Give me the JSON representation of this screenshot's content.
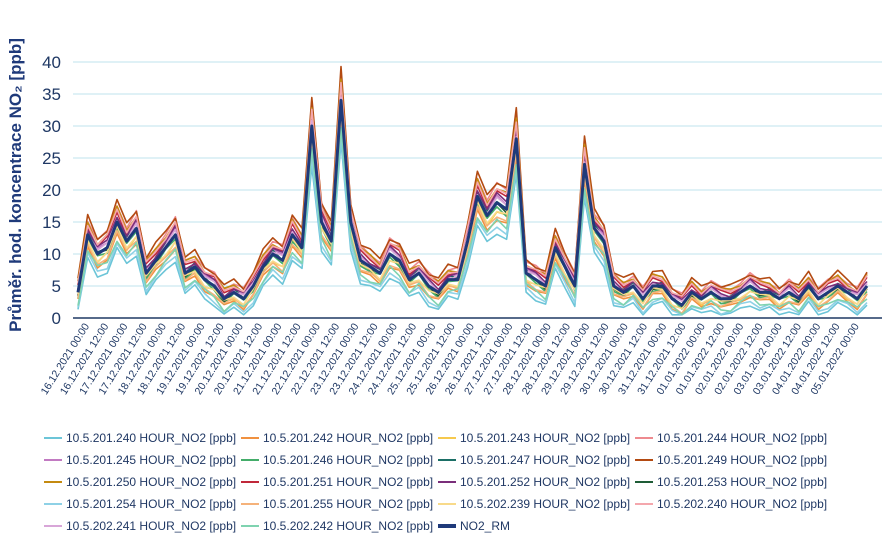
{
  "chart_data": {
    "type": "line",
    "title": "",
    "xlabel": "",
    "ylabel": "Průměr. hod. koncentrace NO₂ [ppb]",
    "ylim": [
      0,
      40
    ],
    "yticks": [
      0,
      5,
      10,
      15,
      20,
      25,
      30,
      35,
      40
    ],
    "grid": true,
    "legend_position": "bottom",
    "categories": [
      "16.12.2021 00:00",
      "16.12.2021 12:00",
      "17.12.2021 00:00",
      "17.12.2021 12:00",
      "18.12.2021 00:00",
      "18.12.2021 12:00",
      "19.12.2021 00:00",
      "19.12.2021 12:00",
      "20.12.2021 00:00",
      "20.12.2021 12:00",
      "21.12.2021 00:00",
      "21.12.2021 12:00",
      "22.12.2021 00:00",
      "22.12.2021 12:00",
      "23.12.2021 00:00",
      "23.12.2021 12:00",
      "24.12.2021 00:00",
      "24.12.2021 12:00",
      "25.12.2021 00:00",
      "25.12.2021 12:00",
      "26.12.2021 00:00",
      "26.12.2021 12:00",
      "27.12.2021 00:00",
      "27.12.2021 12:00",
      "28.12.2021 00:00",
      "28.12.2021 12:00",
      "29.12.2021 00:00",
      "29.12.2021 12:00",
      "30.12.2021 00:00",
      "30.12.2021 12:00",
      "31.12.2021 00:00",
      "31.12.2021 12:00",
      "01.01.2022 00:00",
      "01.01.2022 12:00",
      "02.01.2022 00:00",
      "02.01.2022 12:00",
      "03.01.2022 00:00",
      "03.01.2022 12:00",
      "04.01.2022 00:00",
      "04.01.2022 12:00",
      "05.01.2022 00:00"
    ],
    "reference": {
      "name": "NO2_RM",
      "color": "#1f3a7a",
      "values": [
        4,
        13,
        10,
        11,
        15,
        12,
        14,
        7,
        9,
        11,
        13,
        7,
        8,
        6,
        5,
        3,
        4,
        3,
        5,
        8,
        10,
        9,
        13,
        11,
        30,
        15,
        12,
        34,
        15,
        9,
        8,
        7,
        10,
        9,
        6,
        7,
        5,
        4,
        6,
        6,
        12,
        19,
        16,
        18,
        17,
        28,
        7,
        6,
        5,
        11,
        8,
        5,
        24,
        14,
        12,
        5,
        4,
        5,
        3,
        5,
        5,
        3,
        2,
        4,
        3,
        4,
        3,
        3,
        4,
        5,
        4,
        4,
        3,
        4,
        3,
        5,
        3,
        4,
        5,
        4,
        3,
        5
      ]
    },
    "series": [
      {
        "name": "10.5.201.240 HOUR_NO2 [ppb]",
        "color": "#6cc5d8",
        "offset": -3.5
      },
      {
        "name": "10.5.201.242 HOUR_NO2 [ppb]",
        "color": "#f0913f",
        "offset": -1.8
      },
      {
        "name": "10.5.201.243 HOUR_NO2 [ppb]",
        "color": "#f6c94e",
        "offset": -1.0
      },
      {
        "name": "10.5.201.244 HOUR_NO2 [ppb]",
        "color": "#ee8a8f",
        "offset": 2.2
      },
      {
        "name": "10.5.201.245 HOUR_NO2 [ppb]",
        "color": "#c27ac2",
        "offset": 0.6
      },
      {
        "name": "10.5.201.246 HOUR_NO2 [ppb]",
        "color": "#44ad6a",
        "offset": -0.6
      },
      {
        "name": "10.5.201.247 HOUR_NO2 [ppb]",
        "color": "#1b6f66",
        "offset": 0.3
      },
      {
        "name": "10.5.201.249 HOUR_NO2 [ppb]",
        "color": "#b34a12",
        "offset": 2.6
      },
      {
        "name": "10.5.201.250 HOUR_NO2 [ppb]",
        "color": "#c48a10",
        "offset": 1.8
      },
      {
        "name": "10.5.201.251 HOUR_NO2 [ppb]",
        "color": "#c0283a",
        "offset": 1.3
      },
      {
        "name": "10.5.201.252 HOUR_NO2 [ppb]",
        "color": "#7a2e7a",
        "offset": 0.9
      },
      {
        "name": "10.5.201.253 HOUR_NO2 [ppb]",
        "color": "#1e5c36",
        "offset": -0.2
      },
      {
        "name": "10.5.201.254 HOUR_NO2 [ppb]",
        "color": "#8ed1e6",
        "offset": -2.8
      },
      {
        "name": "10.5.201.255 HOUR_NO2 [ppb]",
        "color": "#f5b27a",
        "offset": -1.4
      },
      {
        "name": "10.5.202.239 HOUR_NO2 [ppb]",
        "color": "#f8da8a",
        "offset": -0.8
      },
      {
        "name": "10.5.202.240 HOUR_NO2 [ppb]",
        "color": "#f4a7ad",
        "offset": 1.6
      },
      {
        "name": "10.5.202.241 HOUR_NO2 [ppb]",
        "color": "#d8a6d8",
        "offset": 0.4
      },
      {
        "name": "10.5.202.242 HOUR_NO2 [ppb]",
        "color": "#7fd3b0",
        "offset": -2.2
      }
    ]
  }
}
